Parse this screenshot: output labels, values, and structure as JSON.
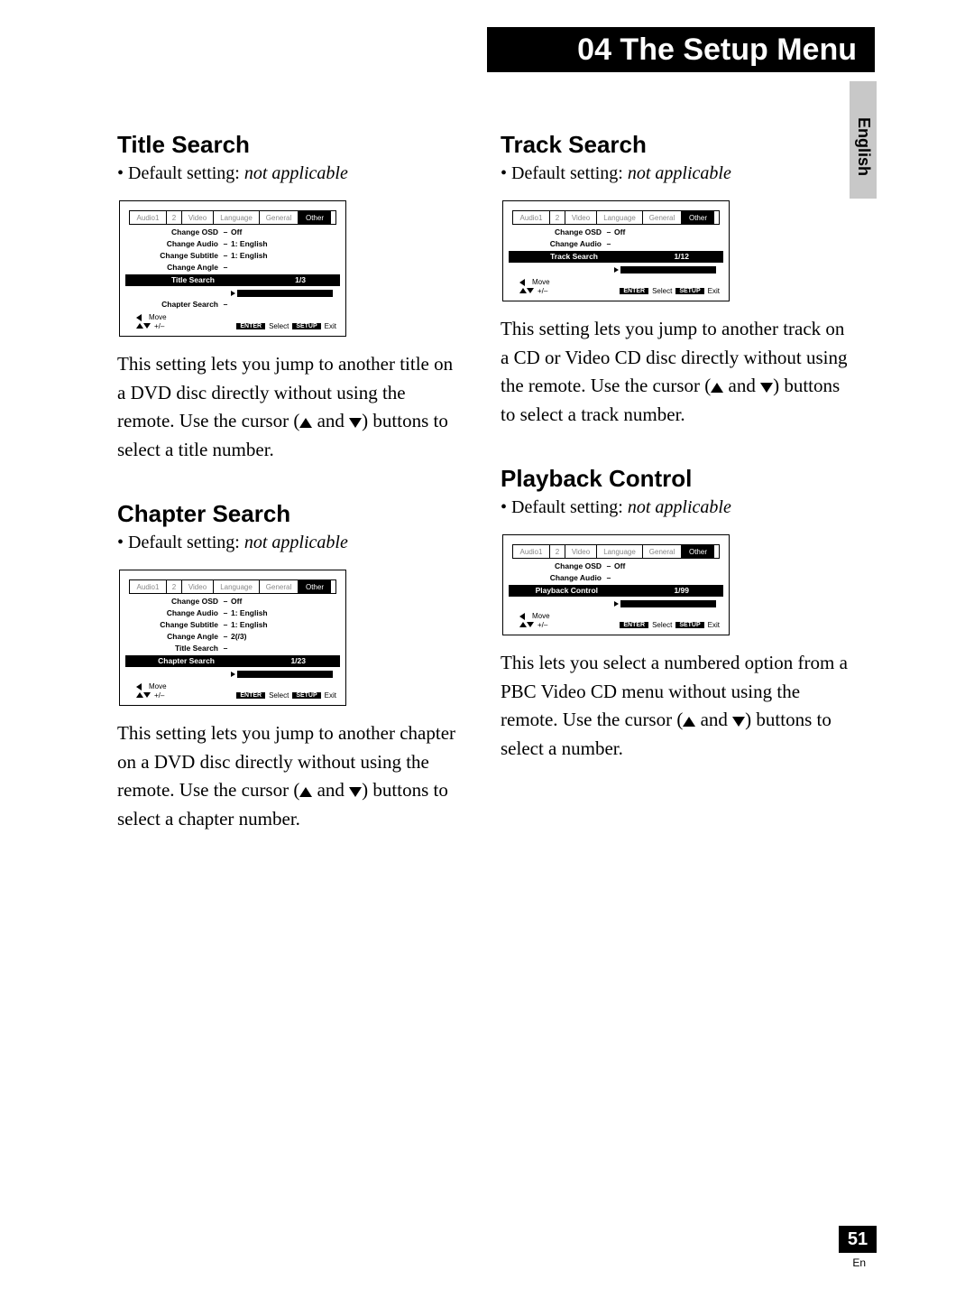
{
  "header": {
    "title": "04 The Setup Menu"
  },
  "language_tab": "English",
  "page_number": "51",
  "page_lang_code": "En",
  "osd_common": {
    "tabs": [
      "Audio1",
      "2",
      "Video",
      "Language",
      "General",
      "Other"
    ],
    "footer": {
      "move": "Move",
      "plusminus": "+/–",
      "enter": "ENTER",
      "select": "Select",
      "setup": "SETUP",
      "exit": "Exit"
    }
  },
  "sections": {
    "title_search": {
      "heading": "Title Search",
      "default_prefix": "• Default setting: ",
      "default_value": "not applicable",
      "osd_rows": [
        {
          "label": "Change OSD",
          "sep": "–",
          "val": "Off"
        },
        {
          "label": "Change Audio",
          "sep": "–",
          "val": "1: English"
        },
        {
          "label": "Change Subtitle",
          "sep": "–",
          "val": "1: English"
        },
        {
          "label": "Change Angle",
          "sep": "–",
          "val": ""
        },
        {
          "label": "Title Search",
          "sep": "",
          "val": "1/3",
          "hl": true
        },
        {
          "label": "Chapter Search",
          "sep": "–",
          "val": ""
        }
      ],
      "para_before": "This setting lets you jump to another title on a DVD disc directly without using the remote. Use the cursor (",
      "para_mid": " and ",
      "para_after": ") buttons to select a title number."
    },
    "chapter_search": {
      "heading": "Chapter Search",
      "default_prefix": "• Default setting: ",
      "default_value": "not applicable",
      "osd_rows": [
        {
          "label": "Change OSD",
          "sep": "–",
          "val": "Off"
        },
        {
          "label": "Change Audio",
          "sep": "–",
          "val": "1: English"
        },
        {
          "label": "Change Subtitle",
          "sep": "–",
          "val": "1: English"
        },
        {
          "label": "Change Angle",
          "sep": "–",
          "val": "2(/3)"
        },
        {
          "label": "Title Search",
          "sep": "–",
          "val": ""
        },
        {
          "label": "Chapter Search",
          "sep": "",
          "val": "1/23",
          "hl": true
        }
      ],
      "para_before": "This setting lets you jump to another chapter on a DVD disc directly without using the remote. Use the cursor (",
      "para_mid": " and ",
      "para_after": ") buttons to select a chapter number."
    },
    "track_search": {
      "heading": "Track Search",
      "default_prefix": "• Default setting: ",
      "default_value": "not applicable",
      "osd_rows": [
        {
          "label": "Change OSD",
          "sep": "–",
          "val": "Off"
        },
        {
          "label": "Change Audio",
          "sep": "–",
          "val": ""
        },
        {
          "label": "Track Search",
          "sep": "",
          "val": "1/12",
          "hl": true
        }
      ],
      "para_before": "This setting lets you jump to another track on a CD or Video CD disc directly without using the remote. Use the cursor (",
      "para_mid": " and ",
      "para_after": ") buttons to select a track number."
    },
    "playback_control": {
      "heading": "Playback Control",
      "default_prefix": "• Default setting: ",
      "default_value": "not applicable",
      "osd_rows": [
        {
          "label": "Change OSD",
          "sep": "–",
          "val": "Off"
        },
        {
          "label": "Change Audio",
          "sep": "–",
          "val": ""
        },
        {
          "label": "Playback Control",
          "sep": "",
          "val": "1/99",
          "hl": true
        }
      ],
      "para_before": "This lets you select a numbered option from a PBC Video CD menu without using the remote. Use the cursor (",
      "para_mid": " and ",
      "para_after": ") buttons to select a number."
    }
  }
}
